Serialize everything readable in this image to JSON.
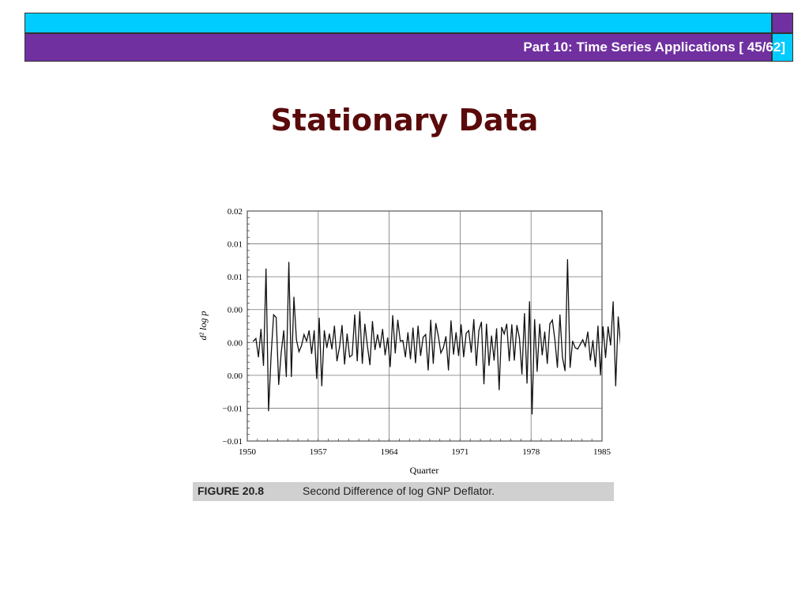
{
  "header": {
    "text": "Part 10: Time Series Applications [ 45/62]",
    "colors": {
      "cyan": "#00ccff",
      "purple": "#7030a0"
    }
  },
  "slide": {
    "title": "Stationary Data"
  },
  "figure": {
    "label": "FIGURE 20.8",
    "caption": "Second Difference of log GNP Deflator."
  },
  "chart_data": {
    "type": "line",
    "xlabel": "Quarter",
    "ylabel": "d² log p",
    "x_ticks": [
      "1950",
      "1957",
      "1964",
      "1971",
      "1978",
      "1985"
    ],
    "y_ticks": [
      "0.02",
      "0.01",
      "0.01",
      "0.00",
      "0.00",
      "0.00",
      "−0.01",
      "−0.01"
    ],
    "xlim": [
      1950,
      1985
    ],
    "ylim": [
      -0.015,
      0.02
    ],
    "grid": true,
    "series": [
      {
        "values": [
          0.0002,
          0.0006,
          -0.0022,
          0.002,
          -0.0035,
          0.0112,
          -0.0104,
          -0.002,
          0.0042,
          0.0038,
          -0.0064,
          -0.0015,
          0.0018,
          -0.0052,
          0.0122,
          -0.0052,
          0.0069,
          0.0004,
          -0.0014,
          -0.0005,
          0.0012,
          0.0002,
          0.0018,
          -0.0017,
          0.0018,
          -0.0055,
          0.0037,
          -0.0066,
          0.0018,
          -0.0008,
          0.0013,
          -0.001,
          0.0025,
          -0.0028,
          -0.0007,
          0.0026,
          -0.0033,
          0.0013,
          -0.0022,
          -0.0019,
          0.0042,
          -0.0028,
          0.0047,
          -0.0032,
          0.0028,
          -0.0005,
          -0.0034,
          0.0032,
          -0.0011,
          0.0012,
          -0.0008,
          0.002,
          -0.0019,
          0.0007,
          -0.0037,
          0.0041,
          -0.0016,
          0.0034,
          0.0002,
          0.0003,
          -0.0022,
          0.0015,
          -0.0025,
          0.0022,
          -0.0031,
          0.0025,
          -0.002,
          0.0008,
          0.0012,
          -0.0042,
          0.0034,
          -0.0032,
          0.0029,
          0.001,
          -0.0016,
          -0.0008,
          0.0009,
          -0.0042,
          0.0033,
          -0.0018,
          0.0015,
          -0.002,
          0.0027,
          -0.0022,
          0.0014,
          0.0018,
          -0.0015,
          0.0035,
          -0.0035,
          0.0018,
          0.0031,
          -0.0063,
          0.0028,
          -0.0035,
          0.001,
          -0.0027,
          0.0021,
          -0.0072,
          0.0023,
          0.0013,
          0.0028,
          -0.0028,
          0.0027,
          -0.0027,
          0.0026,
          0.0007,
          -0.0048,
          0.0044,
          -0.0062,
          0.0062,
          -0.0109,
          0.0035,
          -0.0044,
          0.0028,
          -0.0019,
          0.0016,
          -0.0032,
          0.0028,
          0.0034,
          0.0004,
          -0.0038,
          0.0042,
          -0.0023,
          -0.0043,
          0.0126,
          -0.0038,
          0.0002,
          -0.0008,
          -0.001,
          -0.0003,
          0.0004,
          -0.0006,
          0.0016,
          -0.0027,
          0.0003,
          -0.0037,
          0.0025,
          -0.0049,
          0.0024,
          -0.0023,
          0.0024,
          -0.0004,
          0.0062,
          -0.0066,
          0.0039,
          -0.0006,
          0.0015,
          -0.0044,
          0.0002,
          0.0014,
          0.0027,
          -0.0038,
          0.0015,
          -0.0021,
          0.0024
        ]
      }
    ]
  }
}
